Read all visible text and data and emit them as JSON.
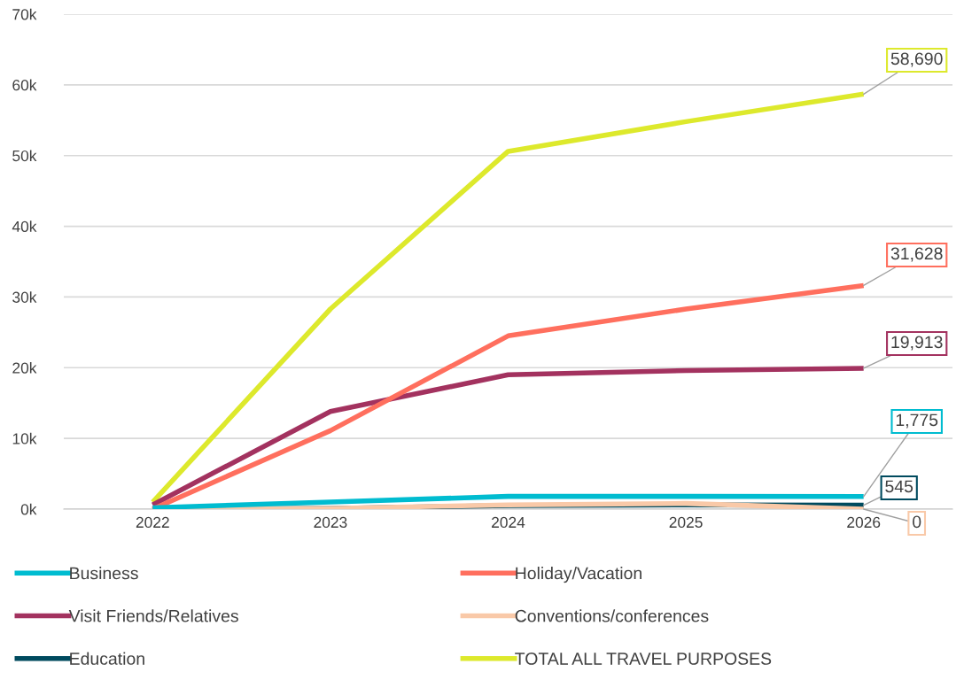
{
  "chart_data": {
    "type": "line",
    "categories": [
      "2022",
      "2023",
      "2024",
      "2025",
      "2026"
    ],
    "ylim": [
      0,
      70000
    ],
    "yticks": [
      {
        "value": 0,
        "label": "0k"
      },
      {
        "value": 10000,
        "label": "10k"
      },
      {
        "value": 20000,
        "label": "20k"
      },
      {
        "value": 30000,
        "label": "30k"
      },
      {
        "value": 40000,
        "label": "40k"
      },
      {
        "value": 50000,
        "label": "50k"
      },
      {
        "value": 60000,
        "label": "60k"
      },
      {
        "value": 70000,
        "label": "70k"
      }
    ],
    "grid": "y",
    "legend": "bottom",
    "marker": "none",
    "line_style": "solid",
    "series": [
      {
        "name": "Business",
        "color": "#00bcd0",
        "values": [
          200,
          1000,
          1800,
          1800,
          1775
        ],
        "value_labels": [
          null,
          null,
          null,
          null,
          "1,775"
        ]
      },
      {
        "name": "Holiday/Vacation",
        "color": "#ff6f5e",
        "values": [
          0,
          11100,
          24500,
          28300,
          31628
        ],
        "value_labels": [
          null,
          null,
          null,
          null,
          "31,628"
        ]
      },
      {
        "name": "Visit Friends/Relatives",
        "color": "#a3325f",
        "values": [
          600,
          13800,
          19000,
          19600,
          19913
        ],
        "value_labels": [
          null,
          null,
          null,
          null,
          "19,913"
        ]
      },
      {
        "name": "Conventions/conferences",
        "color": "#f9c9a8",
        "values": [
          0,
          100,
          600,
          800,
          0
        ],
        "value_labels": [
          null,
          null,
          null,
          null,
          "0"
        ]
      },
      {
        "name": "Education",
        "color": "#004a5e",
        "values": [
          0,
          100,
          500,
          600,
          545
        ],
        "value_labels": [
          null,
          null,
          null,
          null,
          "545"
        ]
      },
      {
        "name": "TOTAL ALL TRAVEL PURPOSES",
        "color": "#dde92c",
        "values": [
          1000,
          28300,
          50600,
          54800,
          58690
        ],
        "value_labels": [
          null,
          null,
          null,
          null,
          "58,690"
        ]
      }
    ]
  }
}
